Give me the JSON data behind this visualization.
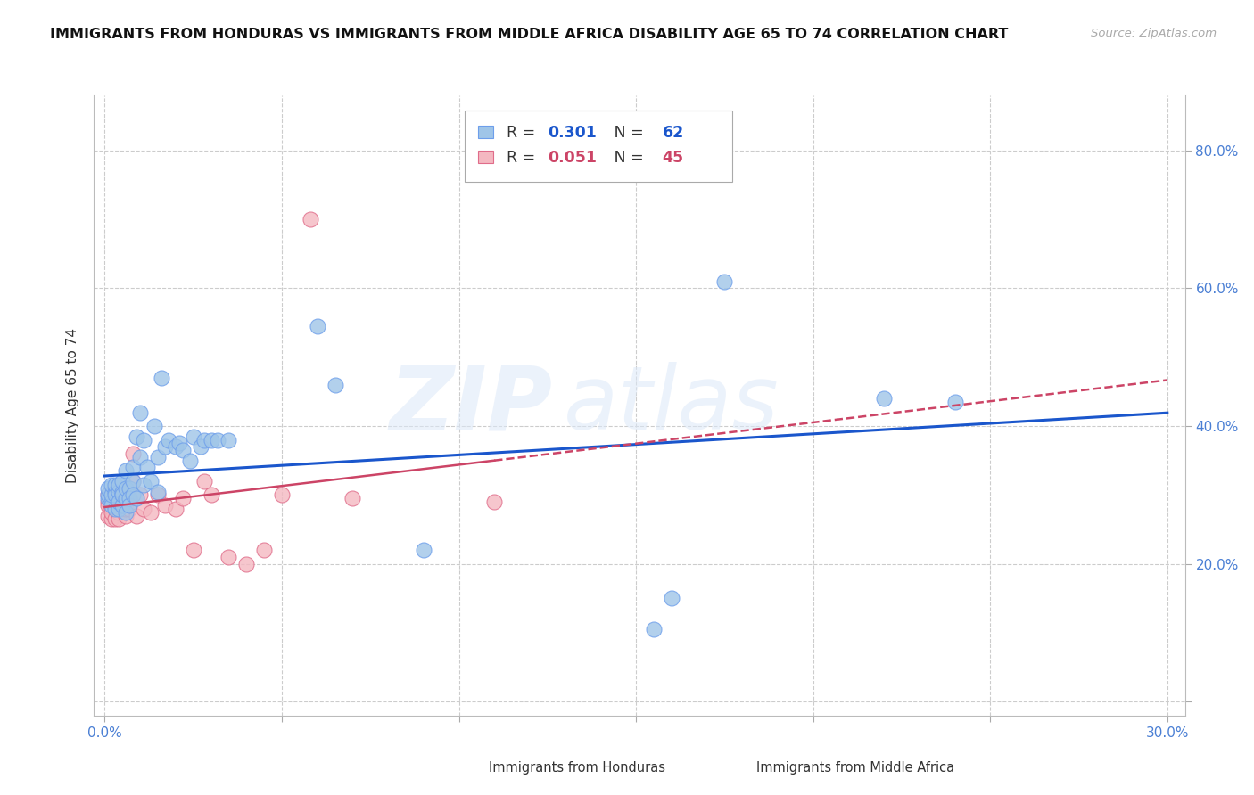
{
  "title": "IMMIGRANTS FROM HONDURAS VS IMMIGRANTS FROM MIDDLE AFRICA DISABILITY AGE 65 TO 74 CORRELATION CHART",
  "source": "Source: ZipAtlas.com",
  "ylabel": "Disability Age 65 to 74",
  "xlim": [
    -0.003,
    0.305
  ],
  "ylim": [
    -0.02,
    0.88
  ],
  "x_ticks": [
    0.0,
    0.05,
    0.1,
    0.15,
    0.2,
    0.25,
    0.3
  ],
  "y_ticks": [
    0.0,
    0.2,
    0.4,
    0.6,
    0.8
  ],
  "r_honduras": 0.301,
  "n_honduras": 62,
  "r_middle_africa": 0.051,
  "n_middle_africa": 45,
  "legend_labels": [
    "Immigrants from Honduras",
    "Immigrants from Middle Africa"
  ],
  "color_honduras": "#9fc5e8",
  "color_middle_africa": "#f4b8c1",
  "edge_honduras": "#6d9eeb",
  "edge_middle_africa": "#e06c8a",
  "trendline_color_honduras": "#1a56cc",
  "trendline_color_middle_africa": "#cc4466",
  "watermark": "ZIPatlas",
  "background_color": "#ffffff",
  "grid_color": "#cccccc",
  "honduras_x": [
    0.001,
    0.001,
    0.001,
    0.002,
    0.002,
    0.002,
    0.002,
    0.003,
    0.003,
    0.003,
    0.003,
    0.004,
    0.004,
    0.004,
    0.004,
    0.005,
    0.005,
    0.005,
    0.005,
    0.005,
    0.006,
    0.006,
    0.006,
    0.006,
    0.007,
    0.007,
    0.007,
    0.008,
    0.008,
    0.008,
    0.009,
    0.009,
    0.01,
    0.01,
    0.011,
    0.011,
    0.012,
    0.013,
    0.014,
    0.015,
    0.015,
    0.016,
    0.017,
    0.018,
    0.02,
    0.021,
    0.022,
    0.024,
    0.025,
    0.027,
    0.028,
    0.03,
    0.032,
    0.035,
    0.06,
    0.065,
    0.09,
    0.155,
    0.16,
    0.175,
    0.22,
    0.24
  ],
  "honduras_y": [
    0.295,
    0.3,
    0.31,
    0.29,
    0.285,
    0.3,
    0.315,
    0.305,
    0.28,
    0.3,
    0.315,
    0.305,
    0.28,
    0.29,
    0.315,
    0.3,
    0.285,
    0.305,
    0.32,
    0.3,
    0.295,
    0.275,
    0.31,
    0.335,
    0.31,
    0.295,
    0.285,
    0.34,
    0.32,
    0.3,
    0.295,
    0.385,
    0.355,
    0.42,
    0.38,
    0.315,
    0.34,
    0.32,
    0.4,
    0.355,
    0.305,
    0.47,
    0.37,
    0.38,
    0.37,
    0.375,
    0.365,
    0.35,
    0.385,
    0.37,
    0.38,
    0.38,
    0.38,
    0.38,
    0.545,
    0.46,
    0.22,
    0.105,
    0.15,
    0.61,
    0.44,
    0.435
  ],
  "middle_africa_x": [
    0.001,
    0.001,
    0.001,
    0.001,
    0.002,
    0.002,
    0.002,
    0.002,
    0.003,
    0.003,
    0.003,
    0.003,
    0.004,
    0.004,
    0.004,
    0.005,
    0.005,
    0.005,
    0.006,
    0.006,
    0.006,
    0.006,
    0.007,
    0.007,
    0.007,
    0.008,
    0.008,
    0.009,
    0.01,
    0.011,
    0.013,
    0.015,
    0.017,
    0.02,
    0.022,
    0.025,
    0.028,
    0.03,
    0.035,
    0.04,
    0.045,
    0.05,
    0.058,
    0.07,
    0.11
  ],
  "middle_africa_y": [
    0.29,
    0.27,
    0.3,
    0.285,
    0.28,
    0.265,
    0.3,
    0.275,
    0.295,
    0.28,
    0.265,
    0.3,
    0.285,
    0.275,
    0.265,
    0.295,
    0.28,
    0.3,
    0.295,
    0.27,
    0.28,
    0.3,
    0.28,
    0.295,
    0.31,
    0.32,
    0.36,
    0.27,
    0.3,
    0.28,
    0.275,
    0.3,
    0.285,
    0.28,
    0.295,
    0.22,
    0.32,
    0.3,
    0.21,
    0.2,
    0.22,
    0.3,
    0.7,
    0.295,
    0.29
  ]
}
